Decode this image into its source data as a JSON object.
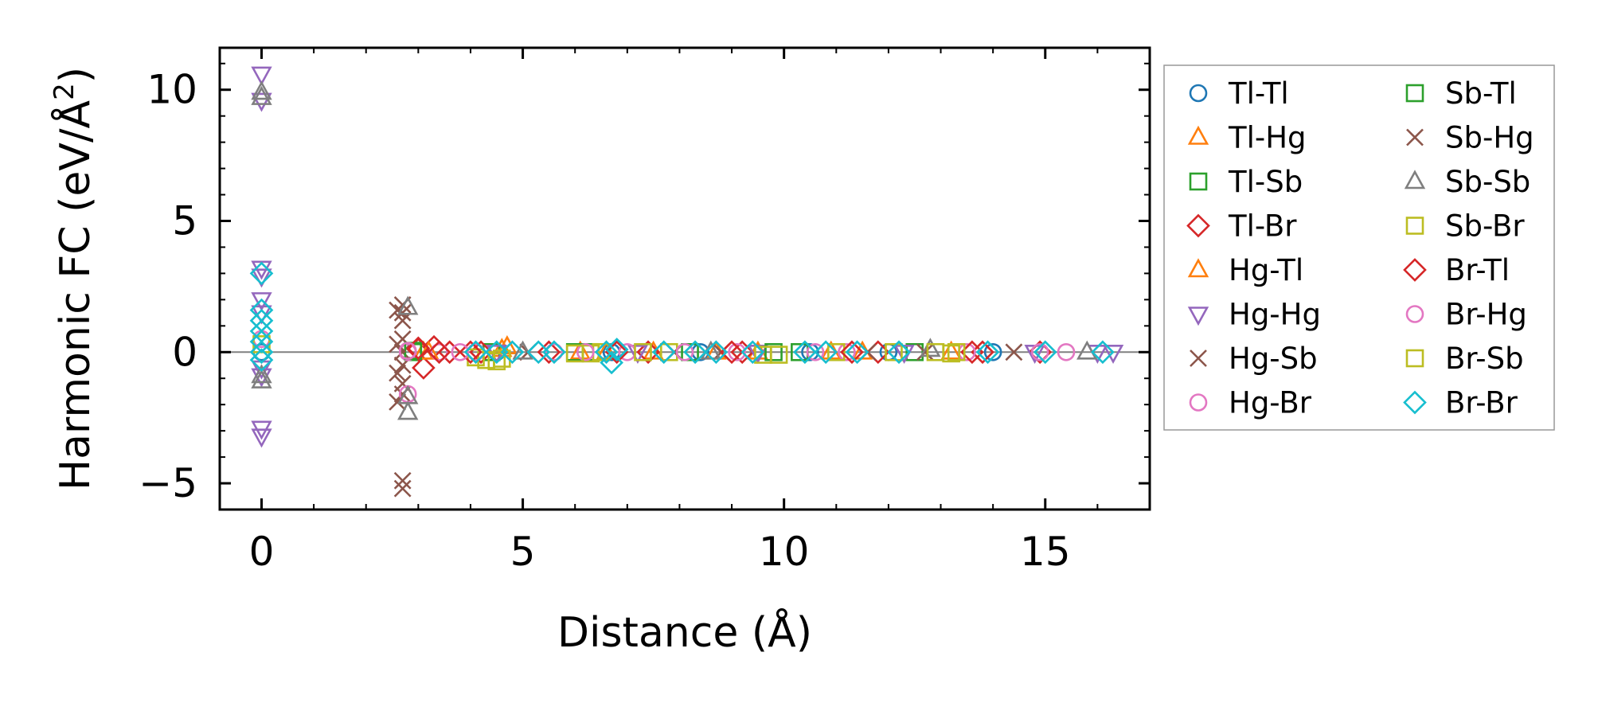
{
  "chart_data": {
    "type": "scatter",
    "xlabel": "Distance (Å)",
    "ylabel_main": "Harmonic FC (eV/Å",
    "ylabel_sup": "2",
    "ylabel_close": ")",
    "xlim": [
      -0.8,
      17.0
    ],
    "ylim": [
      -6.0,
      11.6
    ],
    "xticks": [
      0,
      5,
      10,
      15
    ],
    "xtick_labels": [
      "0",
      "5",
      "10",
      "15"
    ],
    "yticks": [
      -5,
      0,
      5,
      10
    ],
    "ytick_labels": [
      "−5",
      "0",
      "5",
      "10"
    ],
    "zero_line": true,
    "grid": false,
    "legend_position": "outside-right",
    "series": [
      {
        "name": "Tl-Tl",
        "marker": "circle",
        "color": "#1f77b4",
        "points": [
          [
            0,
            0
          ],
          [
            4.5,
            0
          ],
          [
            6.7,
            0
          ],
          [
            8.4,
            0
          ],
          [
            10.5,
            0
          ],
          [
            12.0,
            0
          ],
          [
            14.0,
            0
          ]
        ]
      },
      {
        "name": "Tl-Hg",
        "marker": "triangle-up",
        "color": "#ff7f0e",
        "points": [
          [
            3.1,
            0
          ],
          [
            4.6,
            0.1
          ],
          [
            6.1,
            0
          ],
          [
            7.5,
            0
          ],
          [
            9.5,
            0
          ],
          [
            11.5,
            0
          ],
          [
            13.2,
            0
          ]
        ]
      },
      {
        "name": "Tl-Sb",
        "marker": "square",
        "color": "#2ca02c",
        "points": [
          [
            2.9,
            0
          ],
          [
            4.4,
            0
          ],
          [
            6.3,
            0
          ],
          [
            8.2,
            0
          ],
          [
            10.3,
            0
          ],
          [
            12.5,
            0
          ]
        ]
      },
      {
        "name": "Tl-Br",
        "marker": "diamond",
        "color": "#d62728",
        "points": [
          [
            3.0,
            0.1
          ],
          [
            3.3,
            0.2
          ],
          [
            3.1,
            -0.6
          ],
          [
            3.6,
            0
          ],
          [
            4.2,
            0
          ],
          [
            5.5,
            0
          ],
          [
            7.4,
            0
          ],
          [
            9.2,
            0
          ],
          [
            11.8,
            0
          ],
          [
            13.8,
            0
          ],
          [
            14.9,
            0
          ]
        ]
      },
      {
        "name": "Hg-Tl",
        "marker": "triangle-up",
        "color": "#ff7f0e",
        "points": [
          [
            3.2,
            0
          ],
          [
            4.7,
            0.2
          ],
          [
            6.6,
            0
          ],
          [
            8.7,
            0
          ],
          [
            10.9,
            0
          ]
        ]
      },
      {
        "name": "Hg-Hg",
        "marker": "triangle-down",
        "color": "#9467bd",
        "points": [
          [
            0,
            10.6
          ],
          [
            0,
            9.6
          ],
          [
            0,
            3.2
          ],
          [
            0,
            2.9
          ],
          [
            0,
            2.0
          ],
          [
            0,
            1.5
          ],
          [
            0,
            -0.6
          ],
          [
            0,
            -0.9
          ],
          [
            0,
            -2.9
          ],
          [
            0,
            -3.2
          ],
          [
            4.5,
            0
          ],
          [
            7.2,
            0
          ],
          [
            9.5,
            0
          ],
          [
            12.3,
            0
          ],
          [
            14.8,
            0
          ],
          [
            16.0,
            0
          ],
          [
            16.3,
            0
          ]
        ]
      },
      {
        "name": "Hg-Sb",
        "marker": "x",
        "color": "#8c564b",
        "points": [
          [
            2.7,
            1.8
          ],
          [
            2.7,
            1.5
          ],
          [
            2.7,
            1.2
          ],
          [
            2.7,
            0.5
          ],
          [
            2.7,
            0
          ],
          [
            2.7,
            -0.5
          ],
          [
            2.7,
            -1.2
          ],
          [
            2.7,
            -1.6
          ],
          [
            2.7,
            -4.9
          ],
          [
            2.7,
            -5.2
          ],
          [
            5.1,
            0
          ],
          [
            8.8,
            0
          ],
          [
            12.7,
            0
          ],
          [
            14.4,
            0
          ]
        ]
      },
      {
        "name": "Hg-Br",
        "marker": "circle",
        "color": "#e377c2",
        "points": [
          [
            2.8,
            0
          ],
          [
            2.8,
            -1.6
          ],
          [
            3.4,
            0
          ],
          [
            4.1,
            0
          ],
          [
            5.6,
            0
          ],
          [
            7.0,
            0
          ],
          [
            9.1,
            0
          ],
          [
            11.2,
            0
          ],
          [
            13.5,
            0
          ],
          [
            15.4,
            0
          ]
        ]
      },
      {
        "name": "Sb-Tl",
        "marker": "square",
        "color": "#2ca02c",
        "points": [
          [
            2.9,
            0.05
          ],
          [
            6.0,
            0
          ],
          [
            9.8,
            0
          ]
        ]
      },
      {
        "name": "Sb-Hg",
        "marker": "x",
        "color": "#8c564b",
        "points": [
          [
            2.6,
            1.6
          ],
          [
            2.6,
            0.3
          ],
          [
            2.6,
            -0.8
          ],
          [
            2.6,
            -1.9
          ],
          [
            7.9,
            0
          ],
          [
            11.6,
            0
          ]
        ]
      },
      {
        "name": "Sb-Sb",
        "marker": "triangle-up",
        "color": "#7f7f7f",
        "points": [
          [
            0,
            9.9
          ],
          [
            0,
            9.7
          ],
          [
            0,
            -0.9
          ],
          [
            0,
            -1.1
          ],
          [
            2.8,
            1.7
          ],
          [
            2.8,
            -1.7
          ],
          [
            2.8,
            -2.3
          ],
          [
            5.0,
            0
          ],
          [
            8.6,
            0
          ],
          [
            12.8,
            0.1
          ],
          [
            15.8,
            0
          ]
        ]
      },
      {
        "name": "Sb-Br",
        "marker": "square",
        "color": "#bcbd22",
        "points": [
          [
            4.1,
            -0.2
          ],
          [
            4.3,
            -0.3
          ],
          [
            4.6,
            -0.25
          ],
          [
            6.3,
            -0.05
          ],
          [
            6.5,
            0
          ],
          [
            7.8,
            0
          ],
          [
            9.9,
            -0.1
          ],
          [
            11.0,
            0
          ],
          [
            12.9,
            0
          ],
          [
            13.2,
            -0.05
          ]
        ]
      },
      {
        "name": "Br-Tl",
        "marker": "diamond",
        "color": "#d62728",
        "points": [
          [
            3.0,
            0.15
          ],
          [
            3.4,
            0
          ],
          [
            4.0,
            0
          ],
          [
            6.8,
            0
          ],
          [
            9.0,
            0
          ],
          [
            11.3,
            0
          ],
          [
            13.6,
            0
          ]
        ]
      },
      {
        "name": "Br-Hg",
        "marker": "circle",
        "color": "#e377c2",
        "points": [
          [
            0,
            0.5
          ],
          [
            2.8,
            0.05
          ],
          [
            3.8,
            0
          ],
          [
            6.2,
            0
          ],
          [
            8.1,
            0
          ],
          [
            10.6,
            0
          ],
          [
            14.9,
            0
          ]
        ]
      },
      {
        "name": "Br-Sb",
        "marker": "square",
        "color": "#bcbd22",
        "points": [
          [
            0,
            0.3
          ],
          [
            4.5,
            -0.35
          ],
          [
            6.0,
            -0.05
          ],
          [
            7.3,
            0
          ],
          [
            9.6,
            -0.1
          ],
          [
            12.1,
            0
          ],
          [
            13.3,
            0
          ]
        ]
      },
      {
        "name": "Br-Br",
        "marker": "diamond",
        "color": "#17becf",
        "points": [
          [
            0,
            3.0
          ],
          [
            0,
            1.6
          ],
          [
            0,
            1.2
          ],
          [
            0,
            0.8
          ],
          [
            0,
            0.4
          ],
          [
            0,
            0
          ],
          [
            0,
            -0.3
          ],
          [
            4.1,
            0
          ],
          [
            4.5,
            0
          ],
          [
            4.8,
            0
          ],
          [
            5.3,
            0
          ],
          [
            5.6,
            0
          ],
          [
            6.6,
            0
          ],
          [
            6.7,
            -0.4
          ],
          [
            6.8,
            0.1
          ],
          [
            7.7,
            0
          ],
          [
            8.3,
            0
          ],
          [
            8.7,
            0
          ],
          [
            9.4,
            0
          ],
          [
            10.4,
            0
          ],
          [
            10.8,
            0
          ],
          [
            11.4,
            0
          ],
          [
            12.2,
            0
          ],
          [
            13.9,
            0
          ],
          [
            15.0,
            0
          ],
          [
            16.1,
            0
          ]
        ]
      }
    ]
  }
}
